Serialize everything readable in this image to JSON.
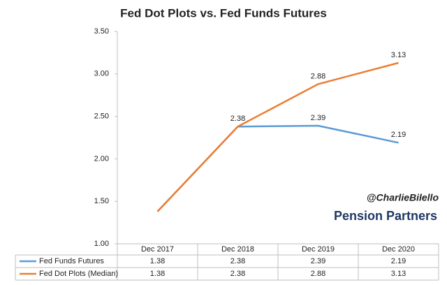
{
  "chart_data": {
    "type": "line",
    "title": "Fed Dot Plots vs. Fed Funds Futures",
    "categories": [
      "Dec 2017",
      "Dec 2018",
      "Dec 2019",
      "Dec 2020"
    ],
    "series": [
      {
        "name": "Fed Funds Futures",
        "color": "#5b9bd5",
        "values": [
          1.38,
          2.38,
          2.39,
          2.19
        ],
        "show_labels": [
          false,
          false,
          true,
          true
        ]
      },
      {
        "name": "Fed Dot Plots (Median)",
        "color": "#ed7d31",
        "values": [
          1.38,
          2.38,
          2.88,
          3.13
        ],
        "show_labels": [
          false,
          true,
          true,
          true
        ]
      }
    ],
    "ylim": [
      1.0,
      3.5
    ],
    "yticks": [
      {
        "value": 1.0,
        "label": "1.00"
      },
      {
        "value": 1.5,
        "label": "1.50"
      },
      {
        "value": 2.0,
        "label": "2.00"
      },
      {
        "value": 2.5,
        "label": "2.50"
      },
      {
        "value": 3.0,
        "label": "3.00"
      },
      {
        "value": 3.5,
        "label": "3.50"
      }
    ],
    "grid": false,
    "annotations": [
      "@CharlieBilello",
      "Pension Partners"
    ]
  }
}
